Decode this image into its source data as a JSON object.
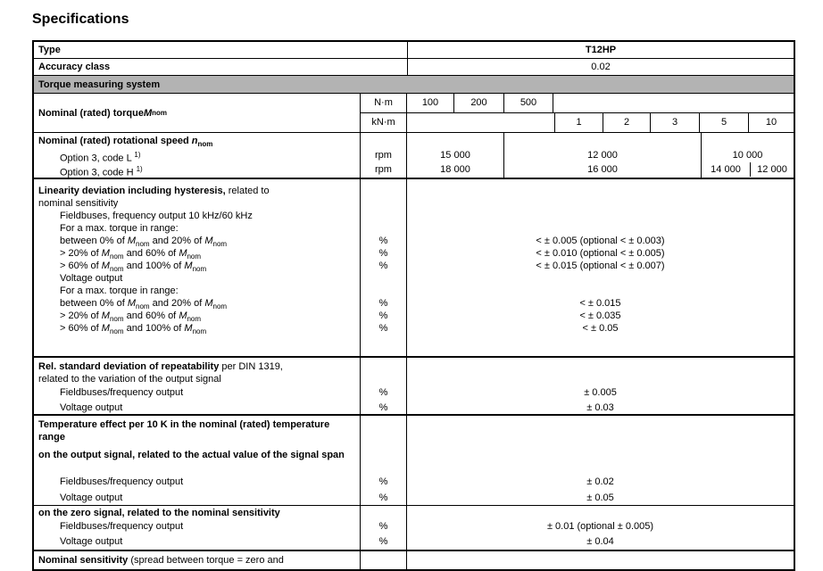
{
  "page": {
    "title": "Specifications"
  },
  "colors": {
    "band_bg": "#b3b3b3",
    "border": "#000000",
    "band_style": "background:#b3b3b3"
  },
  "table": {
    "type_row": {
      "label": "Type",
      "value": "T12HP"
    },
    "accuracy_row": {
      "label": "Accuracy class",
      "value": "0.02"
    },
    "band": {
      "label": "Torque measuring system"
    },
    "torque": {
      "label_rich": [
        {
          "t": "Nominal (rated) torque ",
          "b": 1
        },
        {
          "t": "M",
          "b": 1,
          "i": 1
        },
        {
          "t": "nom",
          "b": 1,
          "sb": 1
        }
      ],
      "nm": {
        "unit": "N·m",
        "v1": "100",
        "v2": "200",
        "v3": "500"
      },
      "knm": {
        "unit": "kN·m",
        "v1": "1",
        "v2": "2",
        "v3": "3",
        "v4": "5",
        "v5": "10"
      }
    },
    "speed": {
      "header_rich": [
        {
          "t": "Nominal (rated) rotational speed ",
          "b": 1
        },
        {
          "t": "n",
          "b": 1,
          "i": 1
        },
        {
          "t": "nom",
          "b": 1,
          "sb": 1
        }
      ],
      "l": {
        "label_rich": [
          {
            "t": "Option 3, code L "
          },
          {
            "t": "1)",
            "sp": 1
          }
        ],
        "unit": "rpm",
        "a": "15 000",
        "b": "12 000",
        "c": "10 000"
      },
      "h": {
        "label_rich": [
          {
            "t": "Option 3, code H "
          },
          {
            "t": "1)",
            "sp": 1
          }
        ],
        "unit": "rpm",
        "a": "18 000",
        "b": "16 000",
        "c1": "14 000",
        "c2": "12 000"
      }
    },
    "linearity": {
      "h1_rich": [
        {
          "t": "Linearity deviation including hysteresis,",
          "b": 1
        },
        {
          "t": " related to"
        }
      ],
      "h2": "nominal sensitivity",
      "fieldbus_title": "Fieldbuses, frequency output 10 kHz/60 kHz",
      "fieldbus_range": "For a max. torque in range:",
      "fb_rows": [
        {
          "label_rich": [
            {
              "t": "between 0% of "
            },
            {
              "t": "M",
              "i": 1
            },
            {
              "t": "nom",
              "sb": 1
            },
            {
              "t": " and 20% of "
            },
            {
              "t": "M",
              "i": 1
            },
            {
              "t": "nom",
              "sb": 1
            }
          ],
          "unit": "%",
          "value": "< ± 0.005 (optional < ± 0.003)"
        },
        {
          "label_rich": [
            {
              "t": "> 20% of "
            },
            {
              "t": "M",
              "i": 1
            },
            {
              "t": "nom",
              "sb": 1
            },
            {
              "t": " and 60% of "
            },
            {
              "t": "M",
              "i": 1
            },
            {
              "t": "nom",
              "sb": 1
            }
          ],
          "unit": "%",
          "value": "< ± 0.010 (optional < ± 0.005)"
        },
        {
          "label_rich": [
            {
              "t": "> 60% of "
            },
            {
              "t": "M",
              "i": 1
            },
            {
              "t": "nom",
              "sb": 1
            },
            {
              "t": " and 100% of "
            },
            {
              "t": "M",
              "i": 1
            },
            {
              "t": "nom",
              "sb": 1
            }
          ],
          "unit": "%",
          "value": "< ± 0.015 (optional < ± 0.007)"
        }
      ],
      "voltage_title": "Voltage output",
      "voltage_range": "For a max. torque in range:",
      "v_rows": [
        {
          "label_rich": [
            {
              "t": "between 0% of "
            },
            {
              "t": "M",
              "i": 1
            },
            {
              "t": "nom",
              "sb": 1
            },
            {
              "t": " and 20% of "
            },
            {
              "t": "M",
              "i": 1
            },
            {
              "t": "nom",
              "sb": 1
            }
          ],
          "unit": "%",
          "value": "< ± 0.015"
        },
        {
          "label_rich": [
            {
              "t": "> 20% of "
            },
            {
              "t": "M",
              "i": 1
            },
            {
              "t": "nom",
              "sb": 1
            },
            {
              "t": " and 60% of "
            },
            {
              "t": "M",
              "i": 1
            },
            {
              "t": "nom",
              "sb": 1
            }
          ],
          "unit": "%",
          "value": "< ± 0.035"
        },
        {
          "label_rich": [
            {
              "t": "> 60% of "
            },
            {
              "t": "M",
              "i": 1
            },
            {
              "t": "nom",
              "sb": 1
            },
            {
              "t": " and 100% of "
            },
            {
              "t": "M",
              "i": 1
            },
            {
              "t": "nom",
              "sb": 1
            }
          ],
          "unit": "%",
          "value": "< ± 0.05"
        }
      ]
    },
    "repeatability": {
      "h1_rich": [
        {
          "t": "Rel. standard deviation of repeatability",
          "b": 1
        },
        {
          "t": " per DIN 1319,"
        }
      ],
      "h2": "related to the variation of the output signal",
      "rows": [
        {
          "label": "Fieldbuses/frequency output",
          "unit": "%",
          "value": "± 0.005"
        },
        {
          "label": "Voltage output",
          "unit": "%",
          "value": "± 0.03"
        }
      ]
    },
    "temperature": {
      "header": "Temperature effect per 10 K in the nominal (rated) temperature range",
      "output_signal": {
        "header": "on the output signal, related to the actual value of the signal span",
        "rows": [
          {
            "label": "Fieldbuses/frequency output",
            "unit": "%",
            "value": "± 0.02"
          },
          {
            "label": "Voltage output",
            "unit": "%",
            "value": "± 0.05"
          }
        ]
      },
      "zero_signal": {
        "header": "on the zero signal, related to the nominal sensitivity",
        "rows": [
          {
            "label": "Fieldbuses/frequency output",
            "unit": "%",
            "value": "± 0.01 (optional ± 0.005)"
          },
          {
            "label": "Voltage output",
            "unit": "%",
            "value": "± 0.04"
          }
        ]
      }
    },
    "partial_row": {
      "label_rich": [
        {
          "t": "Nominal sensitivity",
          "b": 1
        },
        {
          "t": " (spread between torque = zero and"
        }
      ]
    }
  }
}
